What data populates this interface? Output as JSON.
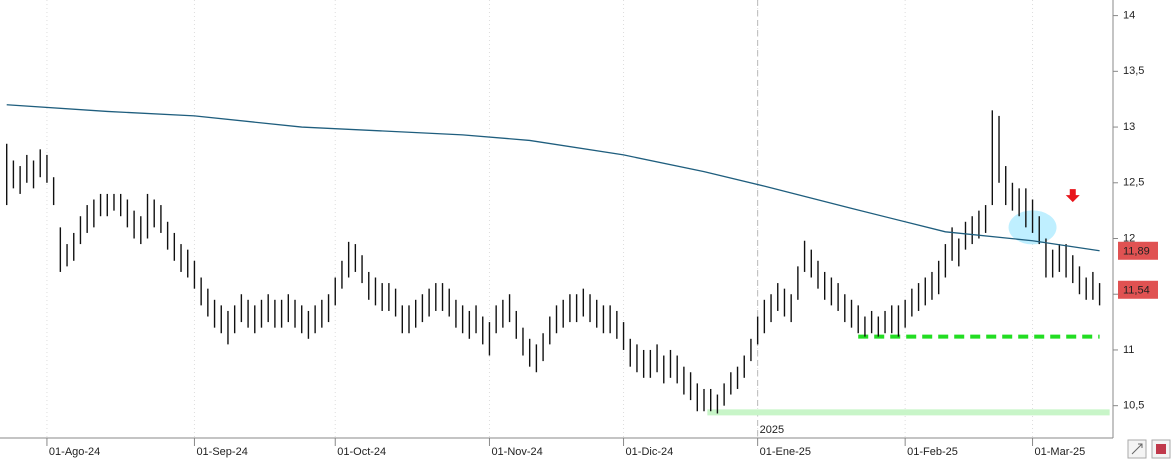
{
  "chart_data": {
    "type": "hilo",
    "xlim": [
      -1,
      165
    ],
    "ylim": [
      10.21,
      14.14
    ],
    "yticks": [
      14,
      {
        "value": 13.5,
        "label": "13,5"
      },
      13,
      {
        "value": 12.5,
        "label": "12,5"
      },
      12,
      {
        "value": 11.5,
        "label": "11,5"
      },
      11,
      {
        "value": 10.5,
        "label": "10,5"
      }
    ],
    "xticks": [
      {
        "value": 6,
        "label": "01-Ago-24"
      },
      {
        "value": 28,
        "label": "01-Sep-24"
      },
      {
        "value": 49,
        "label": "01-Oct-24"
      },
      {
        "value": 72,
        "label": "01-Nov-24"
      },
      {
        "value": 92,
        "label": "01-Dic-24"
      },
      {
        "value": 112,
        "label": "01-Ene-25"
      },
      {
        "value": 134,
        "label": "01-Feb-25"
      },
      {
        "value": 153,
        "label": "01-Mar-25"
      }
    ],
    "year_divider": {
      "value": 112,
      "label": "2025"
    },
    "grid": true,
    "bar_color": "#111111",
    "high": [
      12.85,
      12.7,
      12.65,
      12.75,
      12.7,
      12.8,
      12.75,
      12.55,
      12.1,
      11.95,
      12.05,
      12.2,
      12.3,
      12.35,
      12.4,
      12.4,
      12.4,
      12.4,
      12.35,
      12.25,
      12.2,
      12.4,
      12.35,
      12.3,
      12.15,
      12.05,
      11.95,
      11.9,
      11.8,
      11.65,
      11.55,
      11.45,
      11.4,
      11.35,
      11.4,
      11.5,
      11.45,
      11.4,
      11.45,
      11.5,
      11.45,
      11.45,
      11.5,
      11.45,
      11.4,
      11.35,
      11.4,
      11.45,
      11.5,
      11.65,
      11.8,
      11.97,
      11.95,
      11.85,
      11.7,
      11.65,
      11.6,
      11.6,
      11.55,
      11.4,
      11.4,
      11.45,
      11.5,
      11.55,
      11.6,
      11.6,
      11.55,
      11.45,
      11.4,
      11.35,
      11.4,
      11.3,
      11.25,
      11.4,
      11.45,
      11.5,
      11.35,
      11.2,
      11.1,
      11.05,
      11.15,
      11.3,
      11.4,
      11.45,
      11.5,
      11.5,
      11.55,
      11.5,
      11.45,
      11.4,
      11.4,
      11.35,
      11.25,
      11.1,
      11.05,
      11.0,
      11.0,
      11.05,
      10.95,
      11.0,
      10.95,
      10.85,
      10.8,
      10.7,
      10.65,
      10.65,
      10.6,
      10.7,
      10.8,
      10.85,
      10.95,
      11.1,
      11.3,
      11.45,
      11.5,
      11.6,
      11.55,
      11.5,
      11.75,
      11.98,
      11.9,
      11.8,
      11.7,
      11.65,
      11.6,
      11.5,
      11.45,
      11.4,
      11.3,
      11.35,
      11.3,
      11.35,
      11.4,
      11.4,
      11.45,
      11.55,
      11.6,
      11.65,
      11.7,
      11.8,
      11.95,
      12.1,
      12.0,
      12.15,
      12.2,
      12.25,
      12.3,
      13.15,
      13.1,
      12.65,
      12.5,
      12.45,
      12.45,
      12.35,
      12.2,
      12.0,
      11.9,
      11.95,
      11.95,
      11.85,
      11.75,
      11.65,
      11.7,
      11.6
    ],
    "low": [
      12.3,
      12.45,
      12.4,
      12.5,
      12.45,
      12.55,
      12.5,
      12.3,
      11.7,
      11.75,
      11.8,
      11.95,
      12.05,
      12.1,
      12.2,
      12.2,
      12.25,
      12.2,
      12.1,
      12.0,
      11.95,
      12.0,
      12.1,
      12.05,
      11.9,
      11.8,
      11.7,
      11.65,
      11.55,
      11.4,
      11.3,
      11.2,
      11.15,
      11.05,
      11.15,
      11.25,
      11.2,
      11.15,
      11.2,
      11.25,
      11.2,
      11.2,
      11.25,
      11.2,
      11.15,
      11.1,
      11.15,
      11.2,
      11.25,
      11.4,
      11.55,
      11.65,
      11.7,
      11.6,
      11.45,
      11.4,
      11.35,
      11.35,
      11.3,
      11.15,
      11.15,
      11.2,
      11.25,
      11.3,
      11.35,
      11.35,
      11.3,
      11.2,
      11.15,
      11.1,
      11.15,
      11.05,
      10.95,
      11.15,
      11.2,
      11.25,
      11.1,
      10.95,
      10.85,
      10.8,
      10.9,
      11.05,
      11.15,
      11.2,
      11.25,
      11.25,
      11.3,
      11.25,
      11.2,
      11.15,
      11.15,
      11.1,
      11.0,
      10.85,
      10.8,
      10.75,
      10.75,
      10.8,
      10.7,
      10.75,
      10.7,
      10.6,
      10.55,
      10.45,
      10.45,
      10.45,
      10.43,
      10.5,
      10.6,
      10.65,
      10.75,
      10.9,
      11.05,
      11.15,
      11.25,
      11.35,
      11.3,
      11.25,
      11.45,
      11.7,
      11.65,
      11.55,
      11.45,
      11.4,
      11.35,
      11.25,
      11.2,
      11.15,
      11.12,
      11.15,
      11.12,
      11.15,
      11.15,
      11.12,
      11.2,
      11.3,
      11.35,
      11.4,
      11.45,
      11.5,
      11.65,
      11.8,
      11.75,
      11.9,
      11.95,
      12.0,
      12.05,
      12.3,
      12.5,
      12.3,
      12.25,
      12.2,
      12.1,
      12.05,
      11.95,
      11.65,
      11.65,
      11.7,
      11.65,
      11.6,
      11.5,
      11.45,
      11.45,
      11.4
    ],
    "moving_average": {
      "color": "#1f5e7e",
      "x": [
        0,
        15,
        28,
        44,
        68,
        78,
        92,
        104,
        113,
        126,
        140,
        153,
        163
      ],
      "values": [
        13.2,
        13.14,
        13.1,
        13.0,
        12.93,
        12.88,
        12.75,
        12.6,
        12.47,
        12.27,
        12.06,
        11.98,
        11.89
      ]
    },
    "levels": [
      {
        "value": 11.12,
        "from": 127,
        "to": 163,
        "color": "#22dd22",
        "style": "dashed"
      },
      {
        "value": 10.44,
        "from": 104.5,
        "to": 164.5,
        "color": "#c8f5c8",
        "style": "solid"
      }
    ],
    "highlight": {
      "x": 153,
      "y": 12.1,
      "color": "#bfefff"
    },
    "arrow": {
      "x": 159,
      "y": 12.38,
      "color": "#e8141a"
    },
    "price_labels": [
      {
        "value": 11.89,
        "label": "11,89",
        "color": "#e05252"
      },
      {
        "value": 11.54,
        "label": "11,54",
        "color": "#e05252"
      }
    ]
  }
}
